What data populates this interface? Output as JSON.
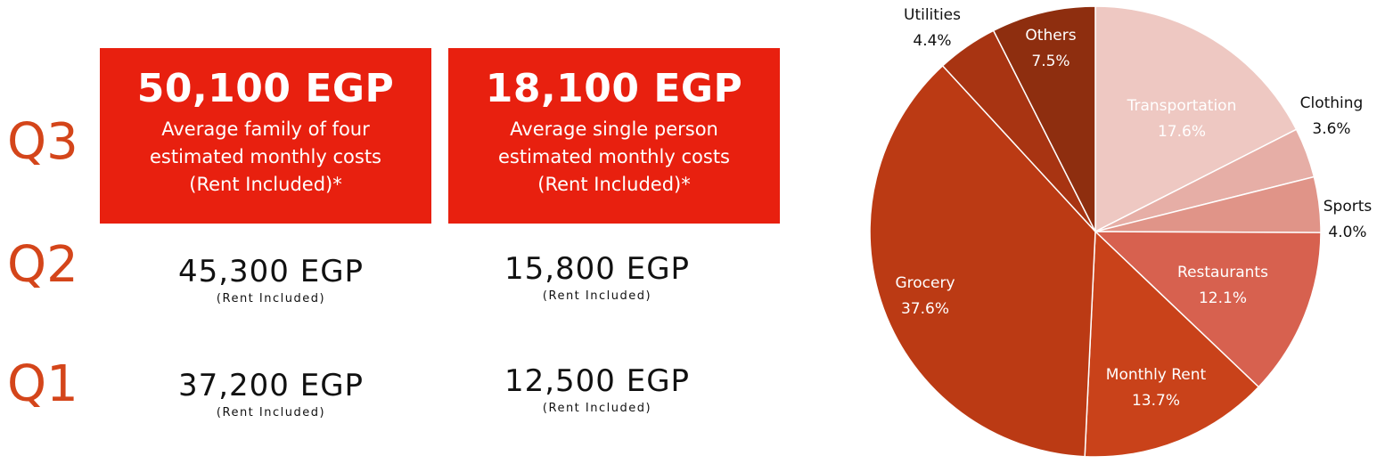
{
  "quarters": [
    {
      "label": "Q3"
    },
    {
      "label": "Q2"
    },
    {
      "label": "Q1"
    }
  ],
  "q3": {
    "family": {
      "amount": "50,100 EGP",
      "line1": "Average family of four",
      "line2": "estimated monthly costs",
      "line3": "(Rent Included)*"
    },
    "single": {
      "amount": "18,100 EGP",
      "line1": "Average single person",
      "line2": "estimated monthly costs",
      "line3": "(Rent Included)*"
    }
  },
  "q2": {
    "family": {
      "amount": "45,300 EGP",
      "note": "(Rent Included)"
    },
    "single": {
      "amount": "15,800 EGP",
      "note": "(Rent Included)"
    }
  },
  "q1": {
    "family": {
      "amount": "37,200 EGP",
      "note": "(Rent Included)"
    },
    "single": {
      "amount": "12,500 EGP",
      "note": "(Rent Included)"
    }
  },
  "colors": {
    "accent_red": "#e8200f",
    "q_label": "#d4451a"
  },
  "chart_data": {
    "type": "pie",
    "slices": [
      {
        "name": "Transportation",
        "value": 17.6,
        "label": "17.6%",
        "color": "#eec8c2"
      },
      {
        "name": "Clothing",
        "value": 3.6,
        "label": "3.6%",
        "color": "#e6aea6"
      },
      {
        "name": "Sports",
        "value": 4.0,
        "label": "4.0%",
        "color": "#e09488"
      },
      {
        "name": "Restaurants",
        "value": 12.1,
        "label": "12.1%",
        "color": "#d7614f"
      },
      {
        "name": "Monthly Rent",
        "value": 13.7,
        "label": "13.7%",
        "color": "#c9421a"
      },
      {
        "name": "Grocery",
        "value": 37.6,
        "label": "37.6%",
        "color": "#bb3a14"
      },
      {
        "name": "Utilities",
        "value": 4.4,
        "label": "4.4%",
        "color": "#a83412"
      },
      {
        "name": "Others",
        "value": 7.5,
        "label": "7.5%",
        "color": "#8e2e0f"
      }
    ]
  }
}
